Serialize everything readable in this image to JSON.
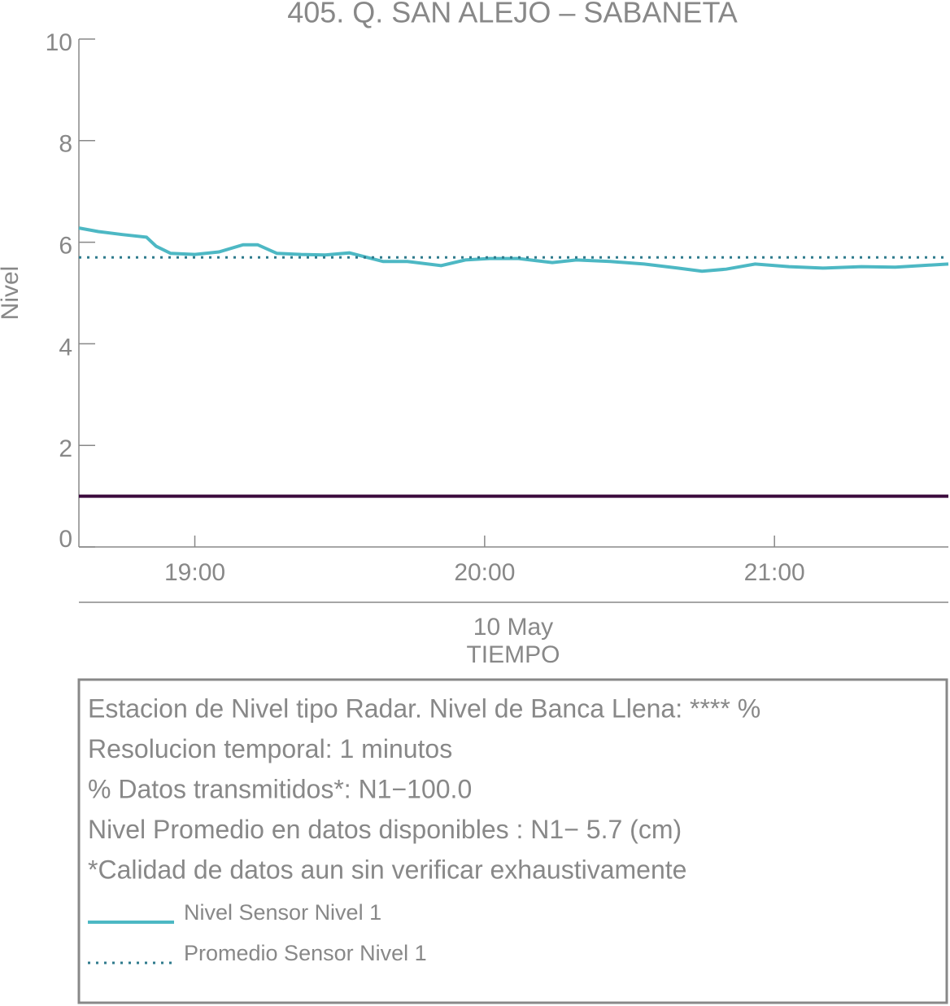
{
  "chart_data": {
    "type": "line",
    "title": "405. Q. SAN ALEJO – SABANETA",
    "ylabel": "Nivel",
    "xlabel_date": "10 May",
    "xlabel": "TIEMPO",
    "xlim": [
      "18:36",
      "21:36"
    ],
    "xticks": [
      "19:00",
      "20:00",
      "21:00"
    ],
    "ylim": [
      0,
      10
    ],
    "yticks": [
      0,
      2,
      4,
      6,
      8,
      10
    ],
    "threshold": {
      "value": 1,
      "color": "#3b0a3d"
    },
    "series": [
      {
        "name": "Nivel Sensor Nivel 1",
        "color": "#4db8c4",
        "style": "solid",
        "x": [
          "18:36",
          "18:40",
          "18:45",
          "18:50",
          "18:52",
          "18:55",
          "19:00",
          "19:05",
          "19:10",
          "19:13",
          "19:17",
          "19:22",
          "19:27",
          "19:32",
          "19:39",
          "19:44",
          "19:51",
          "19:56",
          "20:01",
          "20:07",
          "20:14",
          "20:19",
          "20:26",
          "20:33",
          "20:40",
          "20:45",
          "20:50",
          "20:56",
          "21:03",
          "21:10",
          "21:18",
          "21:25",
          "21:36"
        ],
        "values": [
          6.28,
          6.21,
          6.15,
          6.1,
          5.92,
          5.78,
          5.76,
          5.81,
          5.95,
          5.95,
          5.78,
          5.76,
          5.75,
          5.79,
          5.62,
          5.62,
          5.54,
          5.65,
          5.68,
          5.68,
          5.6,
          5.65,
          5.62,
          5.57,
          5.49,
          5.43,
          5.47,
          5.57,
          5.52,
          5.49,
          5.52,
          5.51,
          5.57
        ]
      },
      {
        "name": "Promedio Sensor Nivel 1",
        "color": "#2e7a8c",
        "style": "dotted",
        "x": [
          "18:36",
          "21:36"
        ],
        "values": [
          5.7,
          5.7
        ]
      }
    ],
    "notes": [
      "Estacion de Nivel tipo Radar. Nivel de Banca Llena: **** %",
      "Resolucion temporal: 1 minutos",
      "% Datos transmitidos*: N1−100.0",
      "Nivel Promedio en datos disponibles : N1−  5.7 (cm)",
      "*Calidad de datos aun sin verificar exhaustivamente"
    ]
  }
}
